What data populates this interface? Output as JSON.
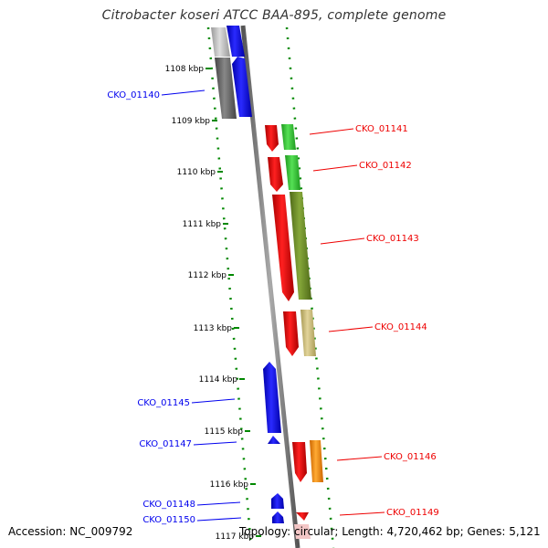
{
  "title": "Citrobacter koseri ATCC BAA-895, complete genome",
  "footer": {
    "accession": "Accession: NC_009792",
    "stats": "Topology: circular; Length: 4,720,462 bp; Genes: 5,121"
  },
  "ruler": {
    "unit": "kbp",
    "ticks": [
      1108,
      1109,
      1110,
      1111,
      1112,
      1113,
      1114,
      1115,
      1116,
      1117
    ]
  },
  "genes": [
    {
      "id": "CKO_01140",
      "strand": "reverse",
      "color": "#0000ee"
    },
    {
      "id": "CKO_01141",
      "strand": "forward",
      "color": "#ee0000"
    },
    {
      "id": "CKO_01142",
      "strand": "forward",
      "color": "#ee0000"
    },
    {
      "id": "CKO_01143",
      "strand": "forward",
      "color": "#ee0000"
    },
    {
      "id": "CKO_01144",
      "strand": "forward",
      "color": "#ee0000"
    },
    {
      "id": "CKO_01145",
      "strand": "reverse",
      "color": "#0000ee"
    },
    {
      "id": "CKO_01146",
      "strand": "forward",
      "color": "#ee0000"
    },
    {
      "id": "CKO_01147",
      "strand": "reverse",
      "color": "#0000ee"
    },
    {
      "id": "CKO_01148",
      "strand": "reverse",
      "color": "#0000ee"
    },
    {
      "id": "CKO_01149",
      "strand": "forward",
      "color": "#ee0000"
    },
    {
      "id": "CKO_01150",
      "strand": "reverse",
      "color": "#0000ee"
    }
  ],
  "colors": {
    "forward_cds": "#ee0000",
    "reverse_cds": "#0000ee",
    "cog_green": "#33cc33",
    "cog_olive": "#6b8e23",
    "cog_khaki": "#c8b870",
    "cog_orange": "#ff8800",
    "cog_gray": "#666666",
    "gc_dots": "#008800"
  }
}
